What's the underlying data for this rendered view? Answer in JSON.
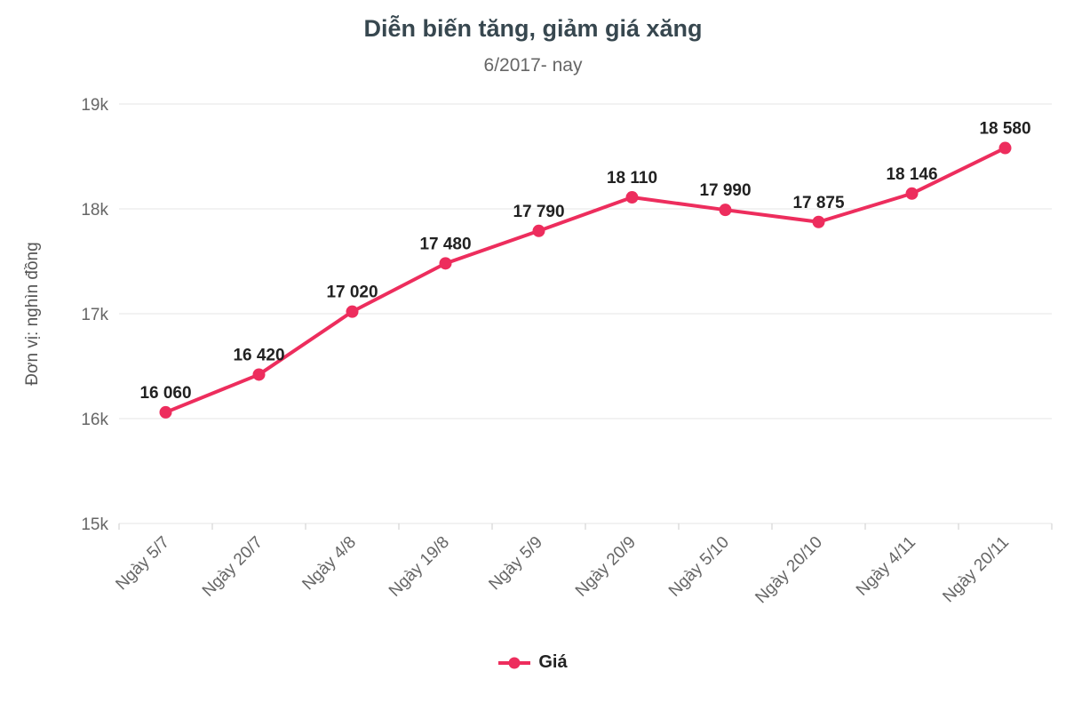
{
  "chart_data": {
    "type": "line",
    "title": "Diễn biến tăng, giảm giá xăng",
    "subtitle": "6/2017- nay",
    "ylabel": "Đơn vị: nghìn đồng",
    "xlabel": "",
    "categories": [
      "Ngày 5/7",
      "Ngày 20/7",
      "Ngày 4/8",
      "Ngày 19/8",
      "Ngày 5/9",
      "Ngày 20/9",
      "Ngày 5/10",
      "Ngày 20/10",
      "Ngày 4/11",
      "Ngày 20/11"
    ],
    "series": [
      {
        "name": "Giá",
        "color": "#ed2d5d",
        "values": [
          16060,
          16420,
          17020,
          17480,
          17790,
          18110,
          17990,
          17875,
          18146,
          18580
        ]
      }
    ],
    "ylim": [
      15000,
      19000
    ],
    "yticks": [
      15000,
      16000,
      17000,
      18000,
      19000
    ],
    "ytick_labels": [
      "15k",
      "16k",
      "17k",
      "18k",
      "19k"
    ],
    "grid": true,
    "legend_position": "bottom",
    "x_label_rotation": -45
  },
  "colors": {
    "line": "#ed2d5d",
    "grid": "#e6e6e6",
    "axis_tick": "#cccccc",
    "tick_text": "#666666",
    "data_label_text": "#212121"
  }
}
